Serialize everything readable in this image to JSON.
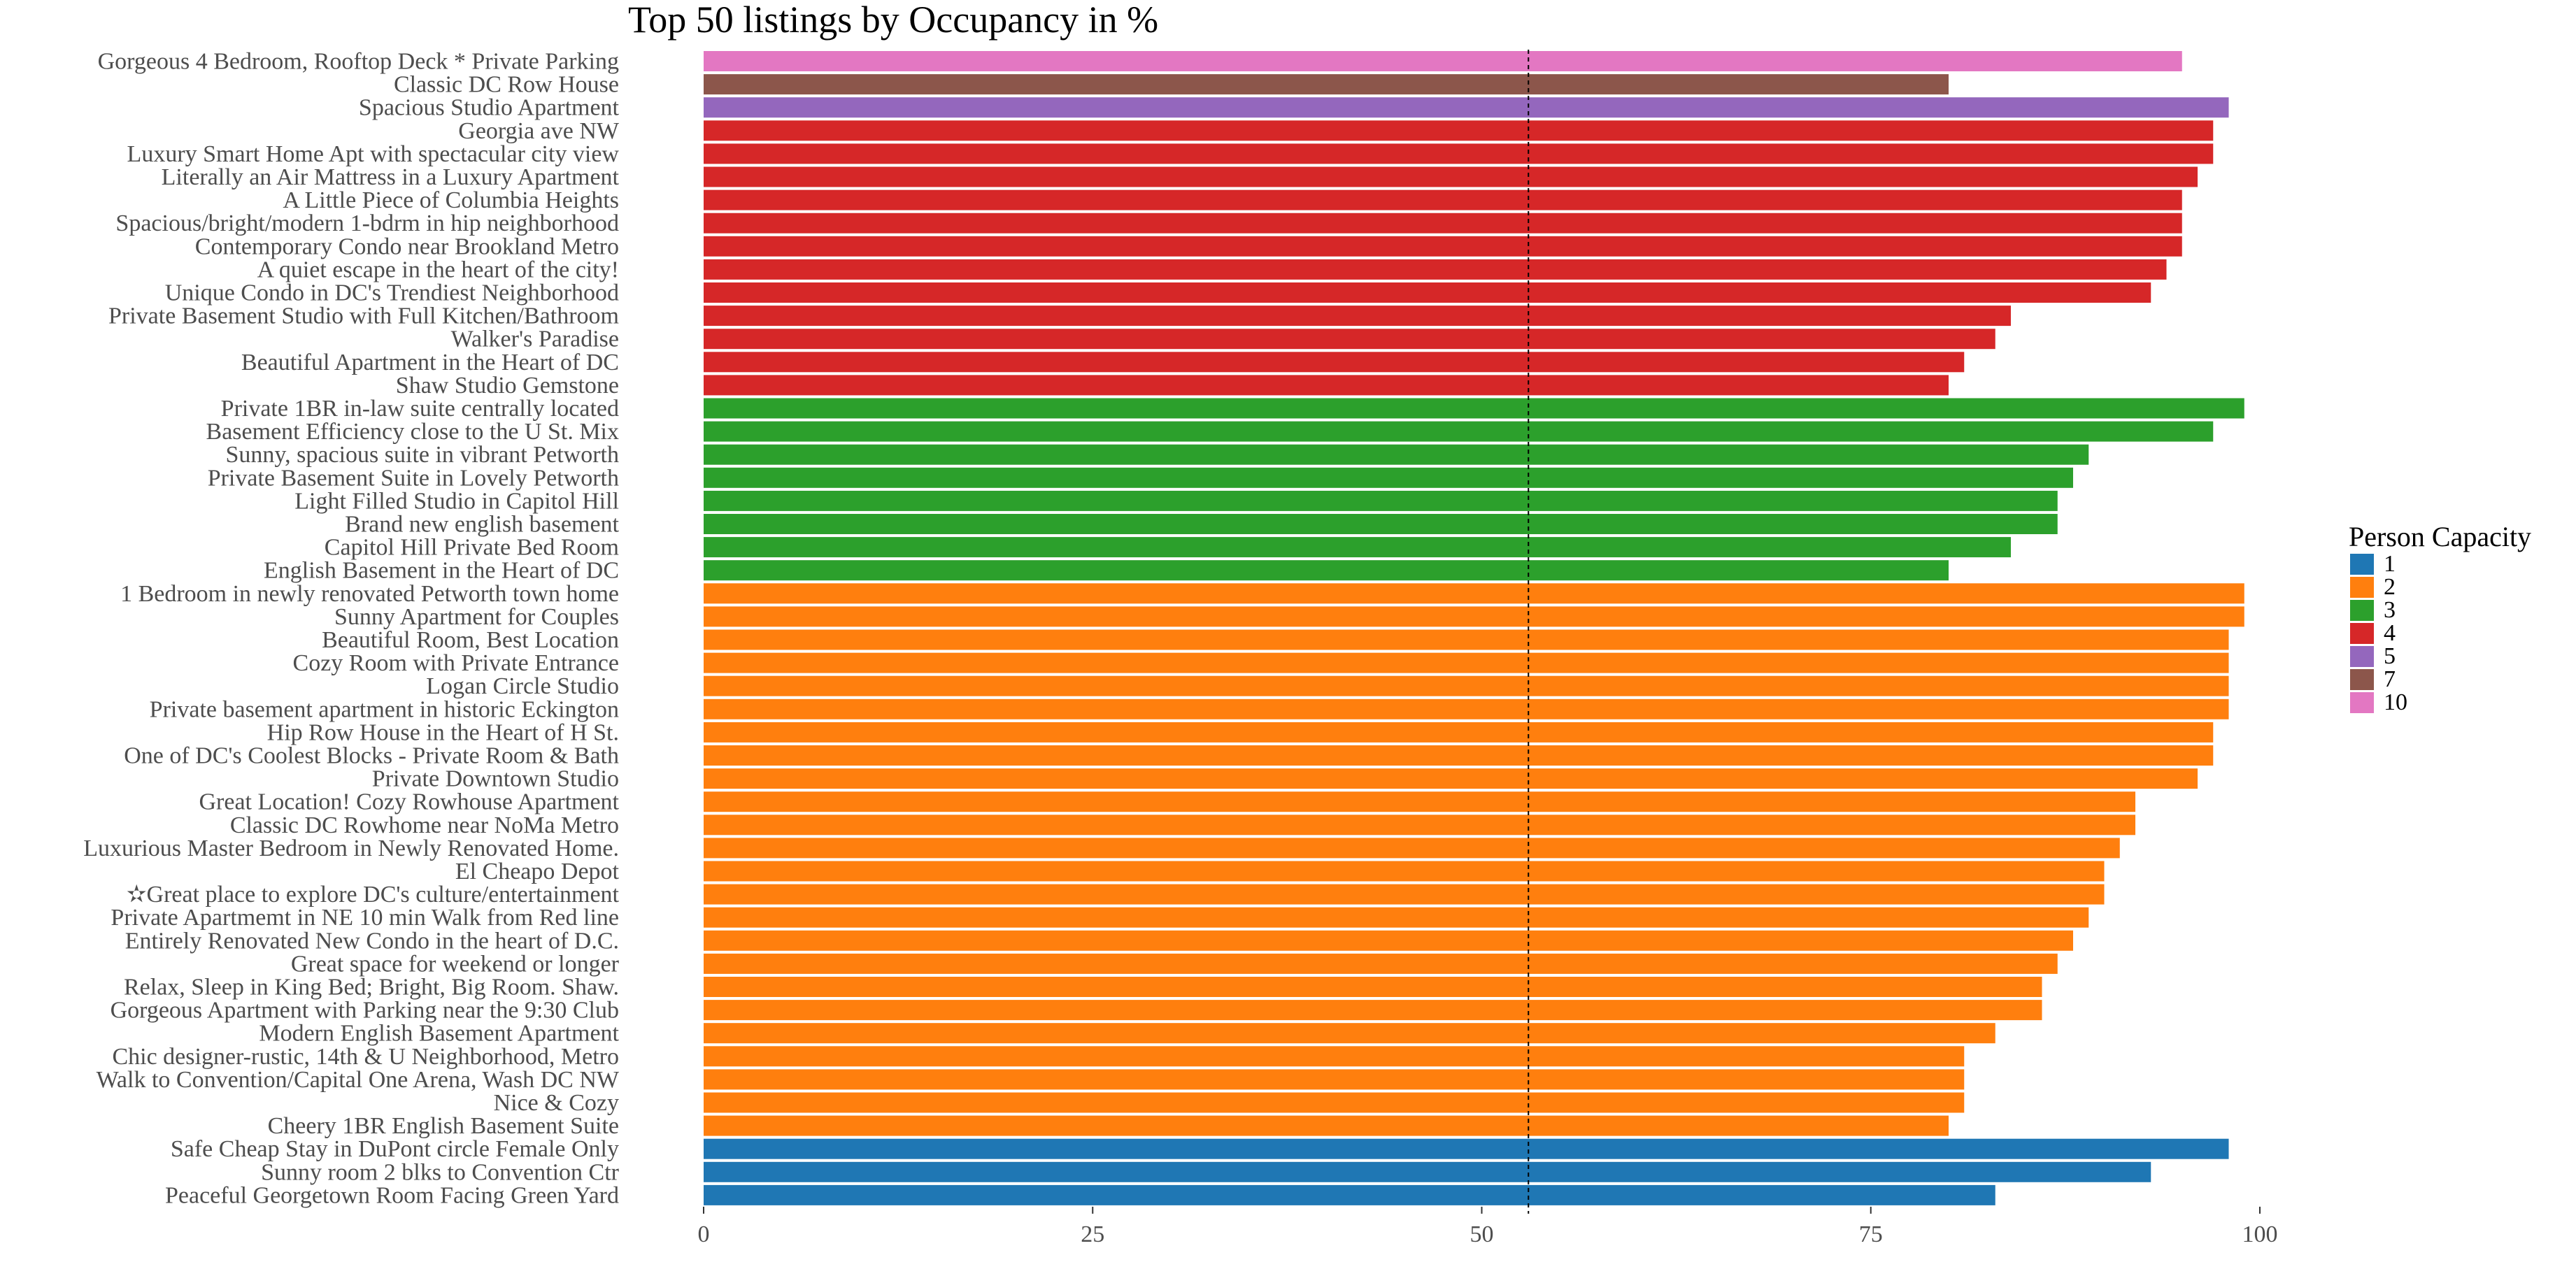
{
  "colors": {
    "1": "#1f77b4",
    "2": "#ff7f0e",
    "3": "#2ca02c",
    "4": "#d62728",
    "5": "#9467bd",
    "7": "#8c564b",
    "10": "#e377c2"
  },
  "chart_data": {
    "type": "bar",
    "orientation": "horizontal",
    "title": "Top 50 listings by Occupancy in %",
    "xlabel": "",
    "ylabel": "",
    "xlim": [
      0,
      100
    ],
    "x_ticks": [
      0,
      25,
      50,
      75,
      100
    ],
    "reference_line": 53,
    "grid": false,
    "legend": {
      "title": "Person Capacity",
      "placement": "right",
      "entries": [
        "1",
        "2",
        "3",
        "4",
        "5",
        "7",
        "10"
      ]
    },
    "categories": [
      "Gorgeous 4 Bedroom, Rooftop Deck * Private Parking",
      "Classic DC Row House",
      "Spacious Studio Apartment",
      "Georgia ave NW",
      "Luxury Smart Home Apt with spectacular city view",
      "Literally an Air Mattress in a Luxury Apartment",
      "A Little Piece of Columbia Heights",
      "Spacious/bright/modern 1-bdrm in hip neighborhood",
      "Contemporary Condo near Brookland Metro",
      "A quiet escape in the heart of the city!",
      "Unique Condo in DC's Trendiest Neighborhood",
      "Private Basement Studio with Full Kitchen/Bathroom",
      "Walker's Paradise",
      "Beautiful Apartment in the Heart of DC",
      "Shaw Studio Gemstone",
      "Private 1BR in-law suite centrally located",
      "Basement Efficiency close to the U St. Mix",
      "Sunny, spacious suite in vibrant Petworth",
      "Private Basement Suite in Lovely Petworth",
      "Light Filled Studio in Capitol Hill",
      "Brand new english basement",
      "Capitol Hill Private Bed Room",
      "English Basement in the Heart of DC",
      "1 Bedroom in newly renovated Petworth town home",
      "Sunny Apartment for Couples",
      "Beautiful Room, Best Location",
      "Cozy Room with Private Entrance",
      "Logan Circle Studio",
      "Private basement apartment in historic Eckington",
      "Hip Row House in the Heart of H St.",
      "One of DC's Coolest Blocks - Private Room & Bath",
      "Private Downtown Studio",
      "Great Location! Cozy Rowhouse Apartment",
      "Classic DC Rowhome near NoMa Metro",
      "Luxurious Master Bedroom in Newly Renovated Home.",
      "El Cheapo Depot",
      "✫Great place to explore DC's culture/entertainment",
      "Private Apartmemt in NE  10 min Walk from Red line",
      "Entirely Renovated New Condo in the heart of D.C.",
      "Great space for weekend or longer",
      "Relax, Sleep in King Bed; Bright, Big Room. Shaw.",
      "Gorgeous Apartment with Parking near the 9:30 Club",
      "Modern English Basement Apartment",
      "Chic designer-rustic, 14th & U Neighborhood, Metro",
      "Walk to Convention/Capital One Arena, Wash DC NW",
      "Nice & Cozy",
      "Cheery 1BR English Basement Suite",
      "Safe Cheap Stay in DuPont circle Female Only",
      "Sunny room 2 blks to Convention Ctr",
      "Peaceful Georgetown Room Facing Green Yard"
    ],
    "values": [
      95,
      80,
      98,
      97,
      97,
      96,
      95,
      95,
      95,
      94,
      93,
      84,
      83,
      81,
      80,
      99,
      97,
      89,
      88,
      87,
      87,
      84,
      80,
      99,
      99,
      98,
      98,
      98,
      98,
      97,
      97,
      96,
      92,
      92,
      91,
      90,
      90,
      89,
      88,
      87,
      86,
      86,
      83,
      81,
      81,
      81,
      80,
      98,
      93,
      83
    ],
    "capacity": [
      "10",
      "7",
      "5",
      "4",
      "4",
      "4",
      "4",
      "4",
      "4",
      "4",
      "4",
      "4",
      "4",
      "4",
      "4",
      "3",
      "3",
      "3",
      "3",
      "3",
      "3",
      "3",
      "3",
      "2",
      "2",
      "2",
      "2",
      "2",
      "2",
      "2",
      "2",
      "2",
      "2",
      "2",
      "2",
      "2",
      "2",
      "2",
      "2",
      "2",
      "2",
      "2",
      "2",
      "2",
      "2",
      "2",
      "2",
      "1",
      "1",
      "1"
    ]
  }
}
